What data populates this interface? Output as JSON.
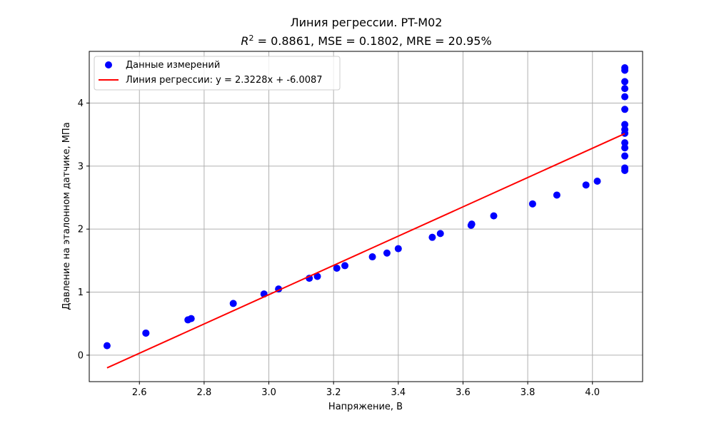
{
  "chart_data": {
    "type": "scatter",
    "title": "Линия регрессии. PT-M02",
    "subtitle_prefix": "R",
    "subtitle_sup": "2",
    "subtitle_rest": " = 0.8861, MSE = 0.1802, MRE = 20.95%",
    "xlabel": "Напряжение, В",
    "ylabel": "Давление на эталонном датчике, МПа",
    "xlim": [
      2.445,
      4.155
    ],
    "ylim": [
      -0.42,
      4.82
    ],
    "xticks": [
      2.6,
      2.8,
      3.0,
      3.2,
      3.4,
      3.6,
      3.8,
      4.0
    ],
    "xtick_labels": [
      "2.6",
      "2.8",
      "3.0",
      "3.2",
      "3.4",
      "3.6",
      "3.8",
      "4.0"
    ],
    "yticks": [
      0,
      1,
      2,
      3,
      4
    ],
    "ytick_labels": [
      "0",
      "1",
      "2",
      "3",
      "4"
    ],
    "grid": true,
    "legend_position": "top-left",
    "series": [
      {
        "name": "Данные измерений",
        "kind": "scatter",
        "color": "#0000ff",
        "points": [
          [
            2.5,
            0.15
          ],
          [
            2.62,
            0.35
          ],
          [
            2.62,
            0.35
          ],
          [
            2.75,
            0.56
          ],
          [
            2.76,
            0.58
          ],
          [
            2.89,
            0.82
          ],
          [
            2.985,
            0.97
          ],
          [
            3.03,
            1.05
          ],
          [
            3.125,
            1.22
          ],
          [
            3.15,
            1.25
          ],
          [
            3.21,
            1.38
          ],
          [
            3.235,
            1.42
          ],
          [
            3.32,
            1.56
          ],
          [
            3.365,
            1.62
          ],
          [
            3.4,
            1.69
          ],
          [
            3.505,
            1.87
          ],
          [
            3.53,
            1.93
          ],
          [
            3.625,
            2.06
          ],
          [
            3.627,
            2.08
          ],
          [
            3.695,
            2.21
          ],
          [
            3.815,
            2.4
          ],
          [
            3.89,
            2.54
          ],
          [
            3.98,
            2.7
          ],
          [
            4.015,
            2.76
          ],
          [
            4.1,
            2.93
          ],
          [
            4.1,
            2.97
          ],
          [
            4.1,
            3.16
          ],
          [
            4.1,
            3.29
          ],
          [
            4.1,
            3.37
          ],
          [
            4.1,
            3.52
          ],
          [
            4.1,
            3.58
          ],
          [
            4.1,
            3.66
          ],
          [
            4.1,
            3.9
          ],
          [
            4.1,
            4.1
          ],
          [
            4.1,
            4.23
          ],
          [
            4.1,
            4.34
          ],
          [
            4.1,
            4.52
          ],
          [
            4.1,
            4.56
          ]
        ]
      },
      {
        "name": "Линия регрессии: y = 2.3228x + -6.0087",
        "kind": "line",
        "color": "#ff0000",
        "slope": 2.3228,
        "intercept": -6.0087,
        "x_range": [
          2.5,
          4.1
        ]
      }
    ]
  }
}
